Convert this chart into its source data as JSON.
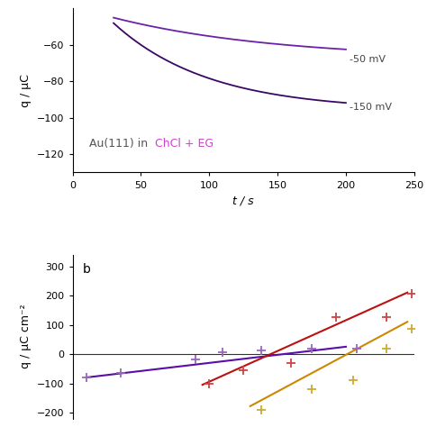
{
  "panel_a": {
    "ylabel": "q / μC",
    "xlabel": "t / s",
    "xlim": [
      0,
      250
    ],
    "ylim": [
      -130,
      -40
    ],
    "yticks": [
      -120,
      -100,
      -80,
      -60
    ],
    "xticks": [
      0,
      50,
      100,
      150,
      200,
      250
    ],
    "curve_color_50": "#6B21A8",
    "curve_color_150": "#3B0764",
    "label_50mV": "-50 mV",
    "label_150mV": "-150 mV",
    "annotation_black": "Au(111) in ",
    "annotation_colored": "ChCl + EG",
    "annotation_color_black": "#555555",
    "annotation_color_purple": "#CC44CC"
  },
  "panel_b": {
    "ylabel": "q / μC cm⁻²",
    "xlim": [
      0,
      250
    ],
    "ylim": [
      -220,
      340
    ],
    "yticks": [
      -200,
      -100,
      0,
      100,
      200,
      300
    ],
    "label_b": "b",
    "line1_color": "#5B0DA8",
    "line2_color": "#BB1111",
    "line3_color": "#CC8800",
    "scatter1_color": "#9966BB",
    "scatter2_color": "#CC4444",
    "scatter3_color": "#CCAA33",
    "line1_x": [
      10,
      200
    ],
    "line1_y": [
      -80,
      25
    ],
    "line2_x": [
      95,
      245
    ],
    "line2_y": [
      -105,
      210
    ],
    "line3_x": [
      130,
      245
    ],
    "line3_y": [
      -178,
      110
    ],
    "scatter1_x": [
      10,
      35,
      90,
      110,
      138,
      175,
      208
    ],
    "scatter1_y": [
      -80,
      -65,
      -18,
      5,
      12,
      20,
      18
    ],
    "scatter2_x": [
      100,
      125,
      160,
      193,
      230,
      248
    ],
    "scatter2_y": [
      -100,
      -55,
      -32,
      125,
      125,
      207
    ],
    "scatter3_x": [
      138,
      175,
      205,
      230,
      248
    ],
    "scatter3_y": [
      -192,
      -120,
      -90,
      18,
      85
    ]
  }
}
